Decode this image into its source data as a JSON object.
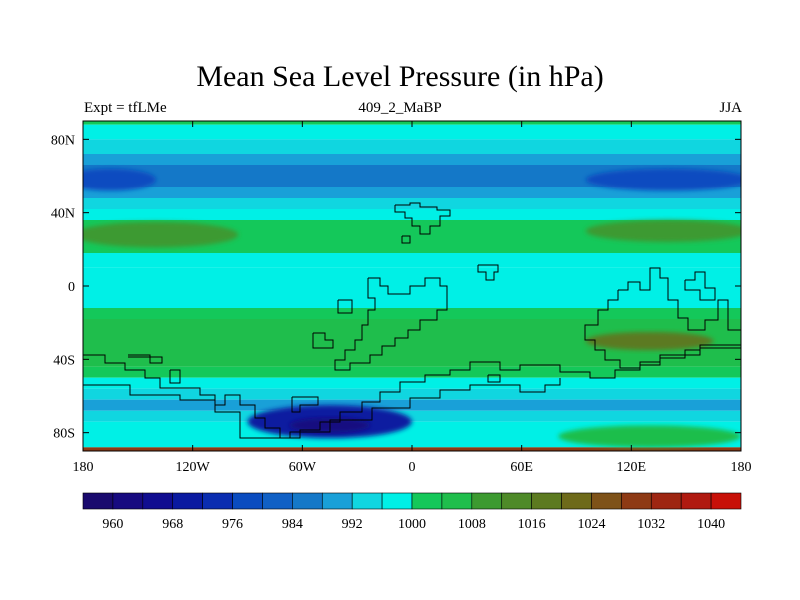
{
  "chart_data": {
    "type": "heatmap",
    "title": "Mean Sea Level Pressure (in hPa)",
    "subtitle_left": "Expt = tfLMe",
    "subtitle_center": "409_2_MaBP",
    "subtitle_right": "JJA",
    "xlabel": "",
    "ylabel": "",
    "xlim": [
      -180,
      180
    ],
    "ylim": [
      -90,
      90
    ],
    "x_ticks": [
      {
        "value": -180,
        "label": "180"
      },
      {
        "value": -120,
        "label": "120W"
      },
      {
        "value": -60,
        "label": "60W"
      },
      {
        "value": 0,
        "label": "0"
      },
      {
        "value": 60,
        "label": "60E"
      },
      {
        "value": 120,
        "label": "120E"
      },
      {
        "value": 180,
        "label": "180"
      }
    ],
    "y_ticks": [
      {
        "value": 80,
        "label": "80N"
      },
      {
        "value": 40,
        "label": "40N"
      },
      {
        "value": 0,
        "label": "0"
      },
      {
        "value": -40,
        "label": "40S"
      },
      {
        "value": -80,
        "label": "80S"
      }
    ],
    "colorbar": {
      "levels": [
        956,
        960,
        964,
        968,
        972,
        976,
        980,
        984,
        988,
        992,
        996,
        1000,
        1004,
        1008,
        1012,
        1016,
        1020,
        1024,
        1028,
        1032,
        1036,
        1040,
        1044
      ],
      "colors": [
        "#1a0a6e",
        "#170a80",
        "#100d90",
        "#0a1aa0",
        "#0a2db0",
        "#0a4cc0",
        "#1060c5",
        "#1478c8",
        "#19a0d8",
        "#10d6e0",
        "#00f0e6",
        "#14c85a",
        "#1fbe4c",
        "#3c9a30",
        "#4e8a28",
        "#5c7a20",
        "#6e6a1a",
        "#7e5218",
        "#8e3a14",
        "#9e2612",
        "#b01a10",
        "#c81008"
      ],
      "tick_labels": [
        "960",
        "968",
        "976",
        "984",
        "992",
        "1000",
        "1008",
        "1016",
        "1024",
        "1032",
        "1040"
      ]
    },
    "field_bands": [
      {
        "lat_from": 90,
        "lat_to": 88,
        "value": 1000
      },
      {
        "lat_from": 88,
        "lat_to": 80,
        "value": 996
      },
      {
        "lat_from": 80,
        "lat_to": 72,
        "value": 992
      },
      {
        "lat_from": 72,
        "lat_to": 66,
        "value": 988
      },
      {
        "lat_from": 66,
        "lat_to": 54,
        "value": 984
      },
      {
        "lat_from": 54,
        "lat_to": 48,
        "value": 988
      },
      {
        "lat_from": 48,
        "lat_to": 42,
        "value": 992
      },
      {
        "lat_from": 42,
        "lat_to": 36,
        "value": 996
      },
      {
        "lat_from": 36,
        "lat_to": 18,
        "value": 1000
      },
      {
        "lat_from": 18,
        "lat_to": 10,
        "value": 996
      },
      {
        "lat_from": 10,
        "lat_to": -12,
        "value": 996
      },
      {
        "lat_from": -12,
        "lat_to": -18,
        "value": 1000
      },
      {
        "lat_from": -18,
        "lat_to": -44,
        "value": 1004
      },
      {
        "lat_from": -44,
        "lat_to": -50,
        "value": 1000
      },
      {
        "lat_from": -50,
        "lat_to": -56,
        "value": 996
      },
      {
        "lat_from": -56,
        "lat_to": -62,
        "value": 992
      },
      {
        "lat_from": -62,
        "lat_to": -68,
        "value": 988
      },
      {
        "lat_from": -68,
        "lat_to": -74,
        "value": 992
      },
      {
        "lat_from": -74,
        "lat_to": -88,
        "value": 996
      },
      {
        "lat_from": -88,
        "lat_to": -90,
        "value": 1028
      }
    ],
    "field_features": [
      {
        "kind": "low",
        "name": "arctic-low-west",
        "lon": -165,
        "lat": 58,
        "rx": 25,
        "ry": 6,
        "value": 976
      },
      {
        "kind": "low",
        "name": "arctic-low-east",
        "lon": 140,
        "lat": 58,
        "rx": 45,
        "ry": 6,
        "value": 976
      },
      {
        "kind": "high",
        "name": "north-subtropical-high-west",
        "lon": -140,
        "lat": 28,
        "rx": 45,
        "ry": 7,
        "value": 1008
      },
      {
        "kind": "high",
        "name": "north-subtropical-high-east",
        "lon": 140,
        "lat": 30,
        "rx": 45,
        "ry": 6,
        "value": 1008
      },
      {
        "kind": "high",
        "name": "south-subtropical-high",
        "lon": 130,
        "lat": -30,
        "rx": 35,
        "ry": 5,
        "value": 1016
      },
      {
        "kind": "low",
        "name": "southern-ocean-low",
        "lon": -45,
        "lat": -74,
        "rx": 45,
        "ry": 9,
        "value": 968
      },
      {
        "kind": "low",
        "name": "southern-ocean-core",
        "lon": -45,
        "lat": -76,
        "rx": 22,
        "ry": 4,
        "value": 960
      },
      {
        "kind": "high",
        "name": "antarctic-high-east",
        "lon": 130,
        "lat": -82,
        "rx": 50,
        "ry": 6,
        "value": 1004
      }
    ]
  }
}
